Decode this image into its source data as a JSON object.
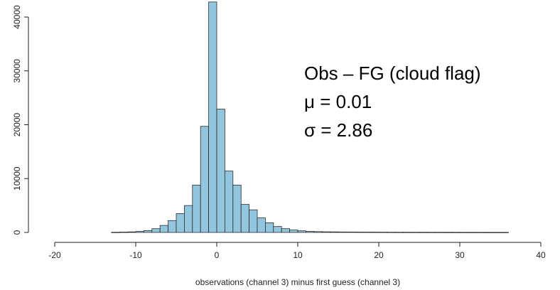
{
  "chart_data": {
    "type": "bar",
    "xlabel": "observations (channel 3) minus first guess (channel 3)",
    "ylabel": "",
    "xlim": [
      -22,
      41
    ],
    "ylim": [
      0,
      43000
    ],
    "grid": false,
    "x_ticks": [
      -20,
      -10,
      0,
      10,
      20,
      30,
      40
    ],
    "y_ticks": [
      0,
      10000,
      20000,
      30000,
      40000
    ],
    "bin_width": 1,
    "bin_start": -13,
    "values": [
      30,
      60,
      100,
      180,
      350,
      700,
      1300,
      2200,
      3500,
      5000,
      8800,
      19700,
      42800,
      22900,
      11400,
      8800,
      5200,
      4200,
      2700,
      1800,
      1100,
      700,
      450,
      300,
      200,
      150,
      120,
      100,
      90,
      80,
      70,
      60,
      55,
      50,
      45,
      40,
      38,
      35,
      32,
      30,
      28,
      26,
      24,
      22,
      20,
      18,
      16,
      14,
      12
    ],
    "bar_color": "#92c5de",
    "edge_color": "#2b2b2b",
    "annotations": [
      "Obs – FG (cloud flag)",
      "μ = 0.01",
      "σ = 2.86"
    ]
  }
}
